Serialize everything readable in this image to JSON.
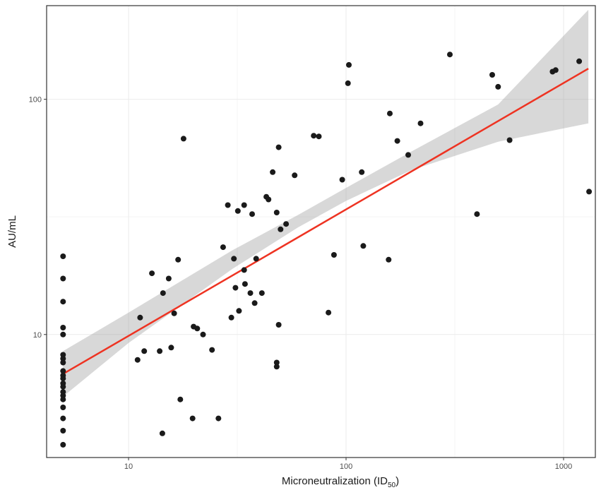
{
  "chart_data": {
    "type": "scatter",
    "xscale": "log10",
    "yscale": "log10",
    "xlim": [
      4.2,
      1400
    ],
    "ylim": [
      3.0,
      250
    ],
    "xticks": [
      10,
      100,
      1000
    ],
    "yticks": [
      10,
      100
    ],
    "xtick_labels": [
      "10",
      "100",
      "1000"
    ],
    "ytick_labels": [
      "10",
      "100"
    ],
    "xlabel": "Microneutralization (ID",
    "xlabel_sub": "50",
    "xlabel_close": ")",
    "ylabel": "AU/mL",
    "grid": true,
    "points": [
      {
        "x": 5,
        "y": 21.5
      },
      {
        "x": 5,
        "y": 17.3
      },
      {
        "x": 5,
        "y": 13.8
      },
      {
        "x": 5,
        "y": 10.7
      },
      {
        "x": 5,
        "y": 10.0
      },
      {
        "x": 5,
        "y": 8.2
      },
      {
        "x": 5,
        "y": 7.9
      },
      {
        "x": 5,
        "y": 7.6
      },
      {
        "x": 5,
        "y": 7.0
      },
      {
        "x": 5,
        "y": 6.7
      },
      {
        "x": 5,
        "y": 6.5
      },
      {
        "x": 5,
        "y": 6.2
      },
      {
        "x": 5,
        "y": 6.0
      },
      {
        "x": 5,
        "y": 5.7
      },
      {
        "x": 5,
        "y": 5.5
      },
      {
        "x": 5,
        "y": 5.3
      },
      {
        "x": 5,
        "y": 4.9
      },
      {
        "x": 5,
        "y": 4.4
      },
      {
        "x": 5,
        "y": 3.9
      },
      {
        "x": 5,
        "y": 3.4
      },
      {
        "x": 11,
        "y": 7.8
      },
      {
        "x": 11.3,
        "y": 11.8
      },
      {
        "x": 11.8,
        "y": 8.5
      },
      {
        "x": 12.8,
        "y": 18.2
      },
      {
        "x": 13.9,
        "y": 8.5
      },
      {
        "x": 14.3,
        "y": 3.8
      },
      {
        "x": 14.4,
        "y": 15.0
      },
      {
        "x": 15.3,
        "y": 17.3
      },
      {
        "x": 15.7,
        "y": 8.8
      },
      {
        "x": 16.2,
        "y": 12.3
      },
      {
        "x": 16.9,
        "y": 20.8
      },
      {
        "x": 17.3,
        "y": 5.3
      },
      {
        "x": 17.9,
        "y": 68
      },
      {
        "x": 19.7,
        "y": 4.4
      },
      {
        "x": 19.9,
        "y": 10.8
      },
      {
        "x": 20.7,
        "y": 10.6
      },
      {
        "x": 22.0,
        "y": 10.0
      },
      {
        "x": 24.2,
        "y": 8.6
      },
      {
        "x": 25.9,
        "y": 4.4
      },
      {
        "x": 27.2,
        "y": 23.5
      },
      {
        "x": 28.6,
        "y": 35.5
      },
      {
        "x": 29.7,
        "y": 11.8
      },
      {
        "x": 30.5,
        "y": 21.0
      },
      {
        "x": 31.0,
        "y": 15.8
      },
      {
        "x": 31.8,
        "y": 33.5
      },
      {
        "x": 32.2,
        "y": 12.6
      },
      {
        "x": 34.0,
        "y": 18.8
      },
      {
        "x": 34.0,
        "y": 35.5
      },
      {
        "x": 34.3,
        "y": 16.4
      },
      {
        "x": 36.3,
        "y": 15.0
      },
      {
        "x": 37.0,
        "y": 32.5
      },
      {
        "x": 38.0,
        "y": 13.6
      },
      {
        "x": 38.6,
        "y": 21.0
      },
      {
        "x": 41.0,
        "y": 15.0
      },
      {
        "x": 43.0,
        "y": 38.5
      },
      {
        "x": 44.0,
        "y": 37.5
      },
      {
        "x": 46.0,
        "y": 49.0
      },
      {
        "x": 48.0,
        "y": 33.0
      },
      {
        "x": 48.0,
        "y": 7.6
      },
      {
        "x": 48.0,
        "y": 7.3
      },
      {
        "x": 49.0,
        "y": 11.0
      },
      {
        "x": 49.0,
        "y": 62.5
      },
      {
        "x": 50.0,
        "y": 28.0
      },
      {
        "x": 53.0,
        "y": 29.5
      },
      {
        "x": 58.0,
        "y": 47.5
      },
      {
        "x": 71.0,
        "y": 70.0
      },
      {
        "x": 75.0,
        "y": 69.5
      },
      {
        "x": 83.0,
        "y": 12.4
      },
      {
        "x": 88.0,
        "y": 21.8
      },
      {
        "x": 96.0,
        "y": 45.5
      },
      {
        "x": 102.0,
        "y": 117
      },
      {
        "x": 103.0,
        "y": 140
      },
      {
        "x": 118.0,
        "y": 49.0
      },
      {
        "x": 120.0,
        "y": 23.8
      },
      {
        "x": 157.0,
        "y": 20.8
      },
      {
        "x": 159.0,
        "y": 87.0
      },
      {
        "x": 172.0,
        "y": 66.5
      },
      {
        "x": 193.0,
        "y": 58.0
      },
      {
        "x": 220.0,
        "y": 79.0
      },
      {
        "x": 300.0,
        "y": 155
      },
      {
        "x": 400.0,
        "y": 32.5
      },
      {
        "x": 470.0,
        "y": 127
      },
      {
        "x": 500.0,
        "y": 113
      },
      {
        "x": 565.0,
        "y": 67.0
      },
      {
        "x": 890.0,
        "y": 131
      },
      {
        "x": 920.0,
        "y": 133
      },
      {
        "x": 1180.0,
        "y": 145
      },
      {
        "x": 1310.0,
        "y": 40.5
      }
    ],
    "fit": {
      "color": "#ee3322",
      "x_range": [
        5,
        1300
      ],
      "line": {
        "x0": 5,
        "y0": 6.8,
        "x1": 1300,
        "y1": 135
      },
      "ci_lower": [
        [
          5,
          5.45
        ],
        [
          10,
          9.2
        ],
        [
          30,
          19.0
        ],
        [
          60,
          28.5
        ],
        [
          100,
          37.0
        ],
        [
          200,
          50.0
        ],
        [
          500,
          66.0
        ],
        [
          1300,
          79.0
        ]
      ],
      "ci_upper": [
        [
          5,
          8.5
        ],
        [
          10,
          12.4
        ],
        [
          30,
          22.8
        ],
        [
          60,
          32.2
        ],
        [
          100,
          42.0
        ],
        [
          200,
          60.0
        ],
        [
          500,
          95.0
        ],
        [
          1300,
          240.0
        ]
      ]
    }
  }
}
